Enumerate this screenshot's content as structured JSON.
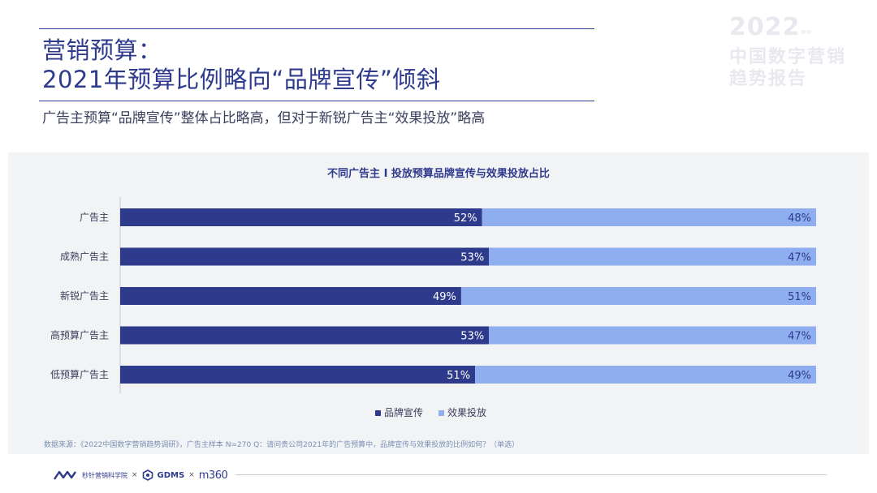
{
  "header": {
    "title_line1": "营销预算：",
    "title_line2": "2021年预算比例略向“品牌宣传”倾斜",
    "subtitle": "广告主预算“品牌宣传”整体占比略高，但对于新锐广告主“效果投放”略高"
  },
  "watermark": {
    "year": "2022",
    "chevrons": "»»",
    "line1": "中国数字营销",
    "line2": "趋势报告"
  },
  "colors": {
    "brand_series": "#2e3a8c",
    "effect_series": "#8faef0",
    "panel_bg": "#f2f3f5"
  },
  "chart_data": {
    "type": "bar",
    "orientation": "horizontal",
    "stacked": true,
    "title": "不同广告主 I 投放预算品牌宣传与效果投放占比",
    "categories": [
      "广告主",
      "成熟广告主",
      "新锐广告主",
      "高预算广告主",
      "低预算广告主"
    ],
    "series": [
      {
        "name": "品牌宣传",
        "values": [
          52,
          53,
          49,
          53,
          51
        ],
        "labels": [
          "52%",
          "53%",
          "49%",
          "53%",
          "51%"
        ],
        "color": "#2e3a8c"
      },
      {
        "name": "效果投放",
        "values": [
          48,
          47,
          51,
          47,
          49
        ],
        "labels": [
          "48%",
          "47%",
          "51%",
          "47%",
          "49%"
        ],
        "color": "#8faef0"
      }
    ],
    "xlim": [
      0,
      100
    ],
    "unit": "%",
    "legend_position": "bottom-center",
    "grid": false
  },
  "footer": {
    "source": "数据来源：《2022中国数字营销趋势调研》，广告主样本 N=270     Q：请问贵公司2021年的广告预算中，品牌宣传与效果投放的比例如何？（单选）",
    "logo1_text": "秒针营销科学院",
    "sep": "×",
    "logo2_text": "GDMS",
    "logo3_text": "m360"
  }
}
